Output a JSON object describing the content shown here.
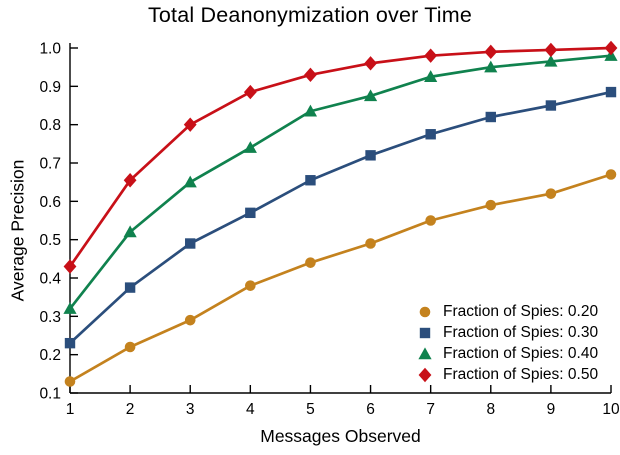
{
  "chart_data": {
    "type": "line",
    "title": "Total Deanonymization over Time",
    "xlabel": "Messages Observed",
    "ylabel": "Average Precision",
    "x": [
      1,
      2,
      3,
      4,
      5,
      6,
      7,
      8,
      9,
      10
    ],
    "xlim": [
      1,
      10
    ],
    "ylim": [
      0.1,
      1.0
    ],
    "x_tick_labels": [
      "1",
      "2",
      "3",
      "4",
      "5",
      "6",
      "7",
      "8",
      "9",
      "10"
    ],
    "y_tick_labels": [
      "0.1",
      "0.2",
      "0.3",
      "0.4",
      "0.5",
      "0.6",
      "0.7",
      "0.8",
      "0.9",
      "1.0"
    ],
    "grid": false,
    "legend_position": "lower right",
    "axis_color": "#000000",
    "series": [
      {
        "name": "Fraction of Spies: 0.20",
        "color": "#C4821E",
        "marker": "circle",
        "values": [
          0.13,
          0.22,
          0.29,
          0.38,
          0.44,
          0.49,
          0.55,
          0.59,
          0.62,
          0.67
        ]
      },
      {
        "name": "Fraction of Spies: 0.30",
        "color": "#2B4E7C",
        "marker": "square",
        "values": [
          0.23,
          0.375,
          0.49,
          0.57,
          0.655,
          0.72,
          0.775,
          0.82,
          0.85,
          0.885
        ]
      },
      {
        "name": "Fraction of Spies: 0.40",
        "color": "#10824E",
        "marker": "triangle",
        "values": [
          0.32,
          0.52,
          0.65,
          0.74,
          0.835,
          0.875,
          0.925,
          0.95,
          0.965,
          0.98
        ]
      },
      {
        "name": "Fraction of Spies: 0.50",
        "color": "#C81018",
        "marker": "diamond",
        "values": [
          0.43,
          0.655,
          0.8,
          0.885,
          0.93,
          0.96,
          0.98,
          0.99,
          0.995,
          1.0
        ]
      }
    ]
  }
}
